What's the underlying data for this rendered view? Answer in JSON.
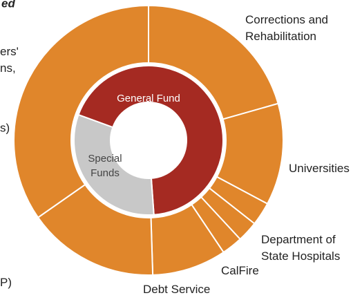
{
  "chart_data": {
    "type": "sunburst",
    "title": "ed",
    "outer": {
      "labels": [
        [
          "Corrections and",
          "Rehabilitation"
        ],
        [
          "Universities"
        ],
        [
          "Department of",
          "State Hospitals"
        ],
        [
          "CalFire"
        ],
        null,
        [
          "Debt Service"
        ],
        [
          "P)"
        ],
        [
          "ers'",
          "ns,"
        ]
      ],
      "values": [
        20.6,
        12.2,
        2.8,
        2.5,
        2.5,
        8.9,
        15.8,
        34.7
      ],
      "color": "#e0862b"
    },
    "inner": {
      "labels": [
        [
          "General Fund"
        ],
        [
          "Special",
          "Funds"
        ]
      ],
      "values": [
        68.3,
        31.7
      ],
      "colors": [
        "#a52a22",
        "#c8c8c8"
      ],
      "label_colors": [
        "#ffffff",
        "#444444"
      ]
    },
    "annotations": [
      "s)"
    ]
  }
}
